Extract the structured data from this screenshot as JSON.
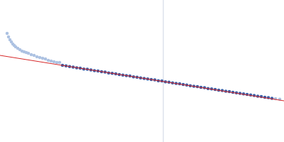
{
  "chart_data": {
    "type": "scatter",
    "xlim": [
      0,
      400
    ],
    "ylim": [
      0,
      200
    ],
    "tick_labels": false,
    "grid": false,
    "reference_line": {
      "x": 230,
      "color": "#ccd3e3"
    },
    "series": [
      {
        "type": "scatter",
        "marker": "circle",
        "color": "#adc2e2",
        "x": [
          10,
          12,
          14,
          16,
          18,
          20,
          22,
          25,
          28,
          31,
          34,
          37,
          40,
          44,
          48,
          52,
          56,
          60,
          64,
          68,
          72,
          76,
          80,
          84,
          388,
          394
        ],
        "values": [
          153,
          148,
          144,
          141,
          138,
          136,
          134,
          132,
          130,
          128,
          127,
          126,
          125,
          123,
          122,
          120,
          119,
          118,
          117,
          115,
          114,
          113,
          112,
          112,
          61.0,
          60.2
        ]
      },
      {
        "type": "scatter",
        "marker": "circle",
        "color": "#3b5ea6",
        "x": [
          88,
          93,
          98,
          103,
          108,
          113,
          118,
          123,
          128,
          133,
          138,
          143,
          148,
          153,
          158,
          163,
          168,
          173,
          178,
          183,
          188,
          193,
          198,
          203,
          208,
          213,
          218,
          223,
          228,
          233,
          238,
          243,
          248,
          253,
          258,
          263,
          268,
          273,
          278,
          283,
          288,
          293,
          298,
          303,
          308,
          313,
          318,
          323,
          328,
          333,
          338,
          343,
          348,
          353,
          358,
          363,
          368,
          373,
          378,
          383
        ],
        "values": [
          107.9,
          107.2,
          106.2,
          105.6,
          104.5,
          103.9,
          102.8,
          102.4,
          101.4,
          100.5,
          99.9,
          99.0,
          98.4,
          97.3,
          96.8,
          96.1,
          95.0,
          94.2,
          93.6,
          92.9,
          91.8,
          91.3,
          90.2,
          89.6,
          88.7,
          88.0,
          87.4,
          86.3,
          85.9,
          84.8,
          84.2,
          83.3,
          82.5,
          81.9,
          80.9,
          80.3,
          79.2,
          78.6,
          77.9,
          77.0,
          76.4,
          75.3,
          74.8,
          74.0,
          73.1,
          72.5,
          71.5,
          70.9,
          70.1,
          69.3,
          68.6,
          67.7,
          67.1,
          66.2,
          65.5,
          64.6,
          64.1,
          63.0,
          62.5,
          61.6
        ]
      },
      {
        "type": "line",
        "line_style": "solid",
        "color": "#d62728",
        "x": [
          0,
          400
        ],
        "values": [
          122,
          58
        ]
      }
    ]
  }
}
